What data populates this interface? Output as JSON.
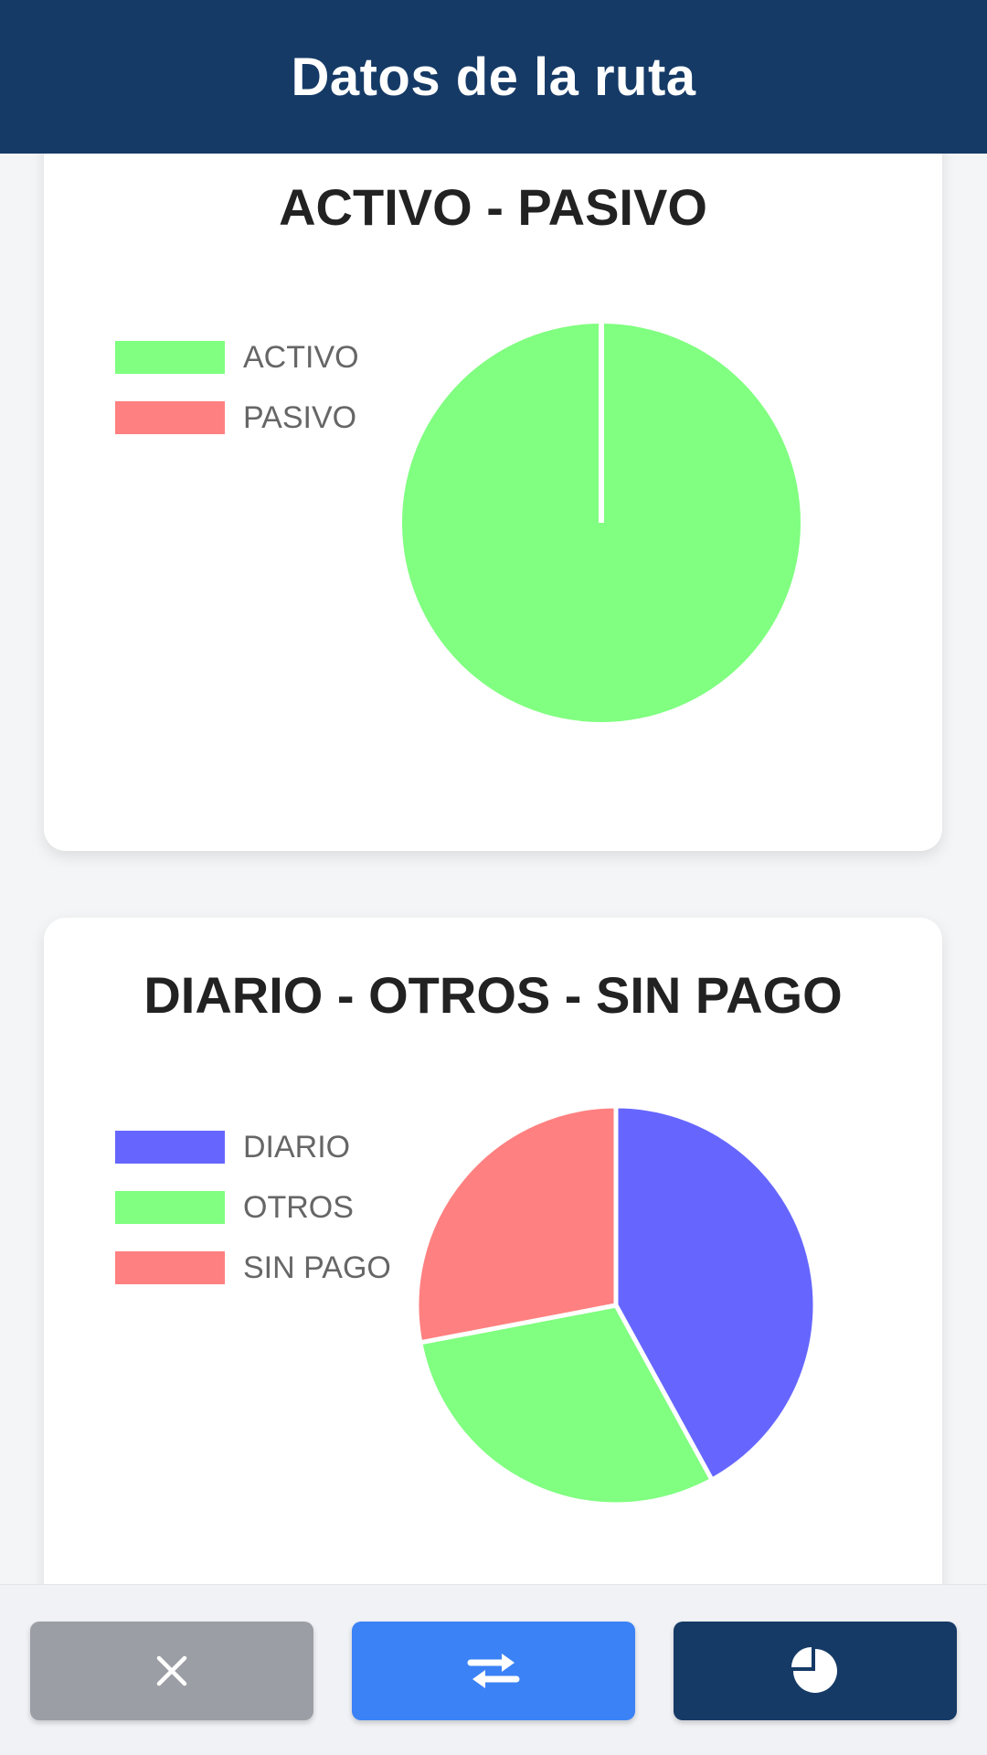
{
  "header": {
    "title": "Datos de la ruta"
  },
  "charts": [
    {
      "title": "ACTIVO - PASIVO",
      "legend": [
        {
          "label": "ACTIVO",
          "color": "#80ff80"
        },
        {
          "label": "PASIVO",
          "color": "#ff8080"
        }
      ]
    },
    {
      "title": "DIARIO - OTROS - SIN PAGO",
      "legend": [
        {
          "label": "DIARIO",
          "color": "#6666ff"
        },
        {
          "label": "OTROS",
          "color": "#80ff80"
        },
        {
          "label": "SIN PAGO",
          "color": "#ff8080"
        }
      ]
    }
  ],
  "chart_data": [
    {
      "type": "pie",
      "title": "ACTIVO - PASIVO",
      "categories": [
        "ACTIVO",
        "PASIVO"
      ],
      "values": [
        100,
        0
      ],
      "colors": [
        "#80ff80",
        "#ff8080"
      ],
      "legend": "left"
    },
    {
      "type": "pie",
      "title": "DIARIO - OTROS - SIN PAGO",
      "categories": [
        "DIARIO",
        "OTROS",
        "SIN PAGO"
      ],
      "values": [
        42,
        30,
        28
      ],
      "colors": [
        "#6666ff",
        "#80ff80",
        "#ff8080"
      ],
      "legend": "left"
    }
  ],
  "bottom_bar": {
    "buttons": [
      {
        "icon": "close-icon",
        "color": "#9b9ea4"
      },
      {
        "icon": "swap-arrows-icon",
        "color": "#3b82f6"
      },
      {
        "icon": "pie-chart-icon",
        "color": "#153a66"
      }
    ]
  }
}
